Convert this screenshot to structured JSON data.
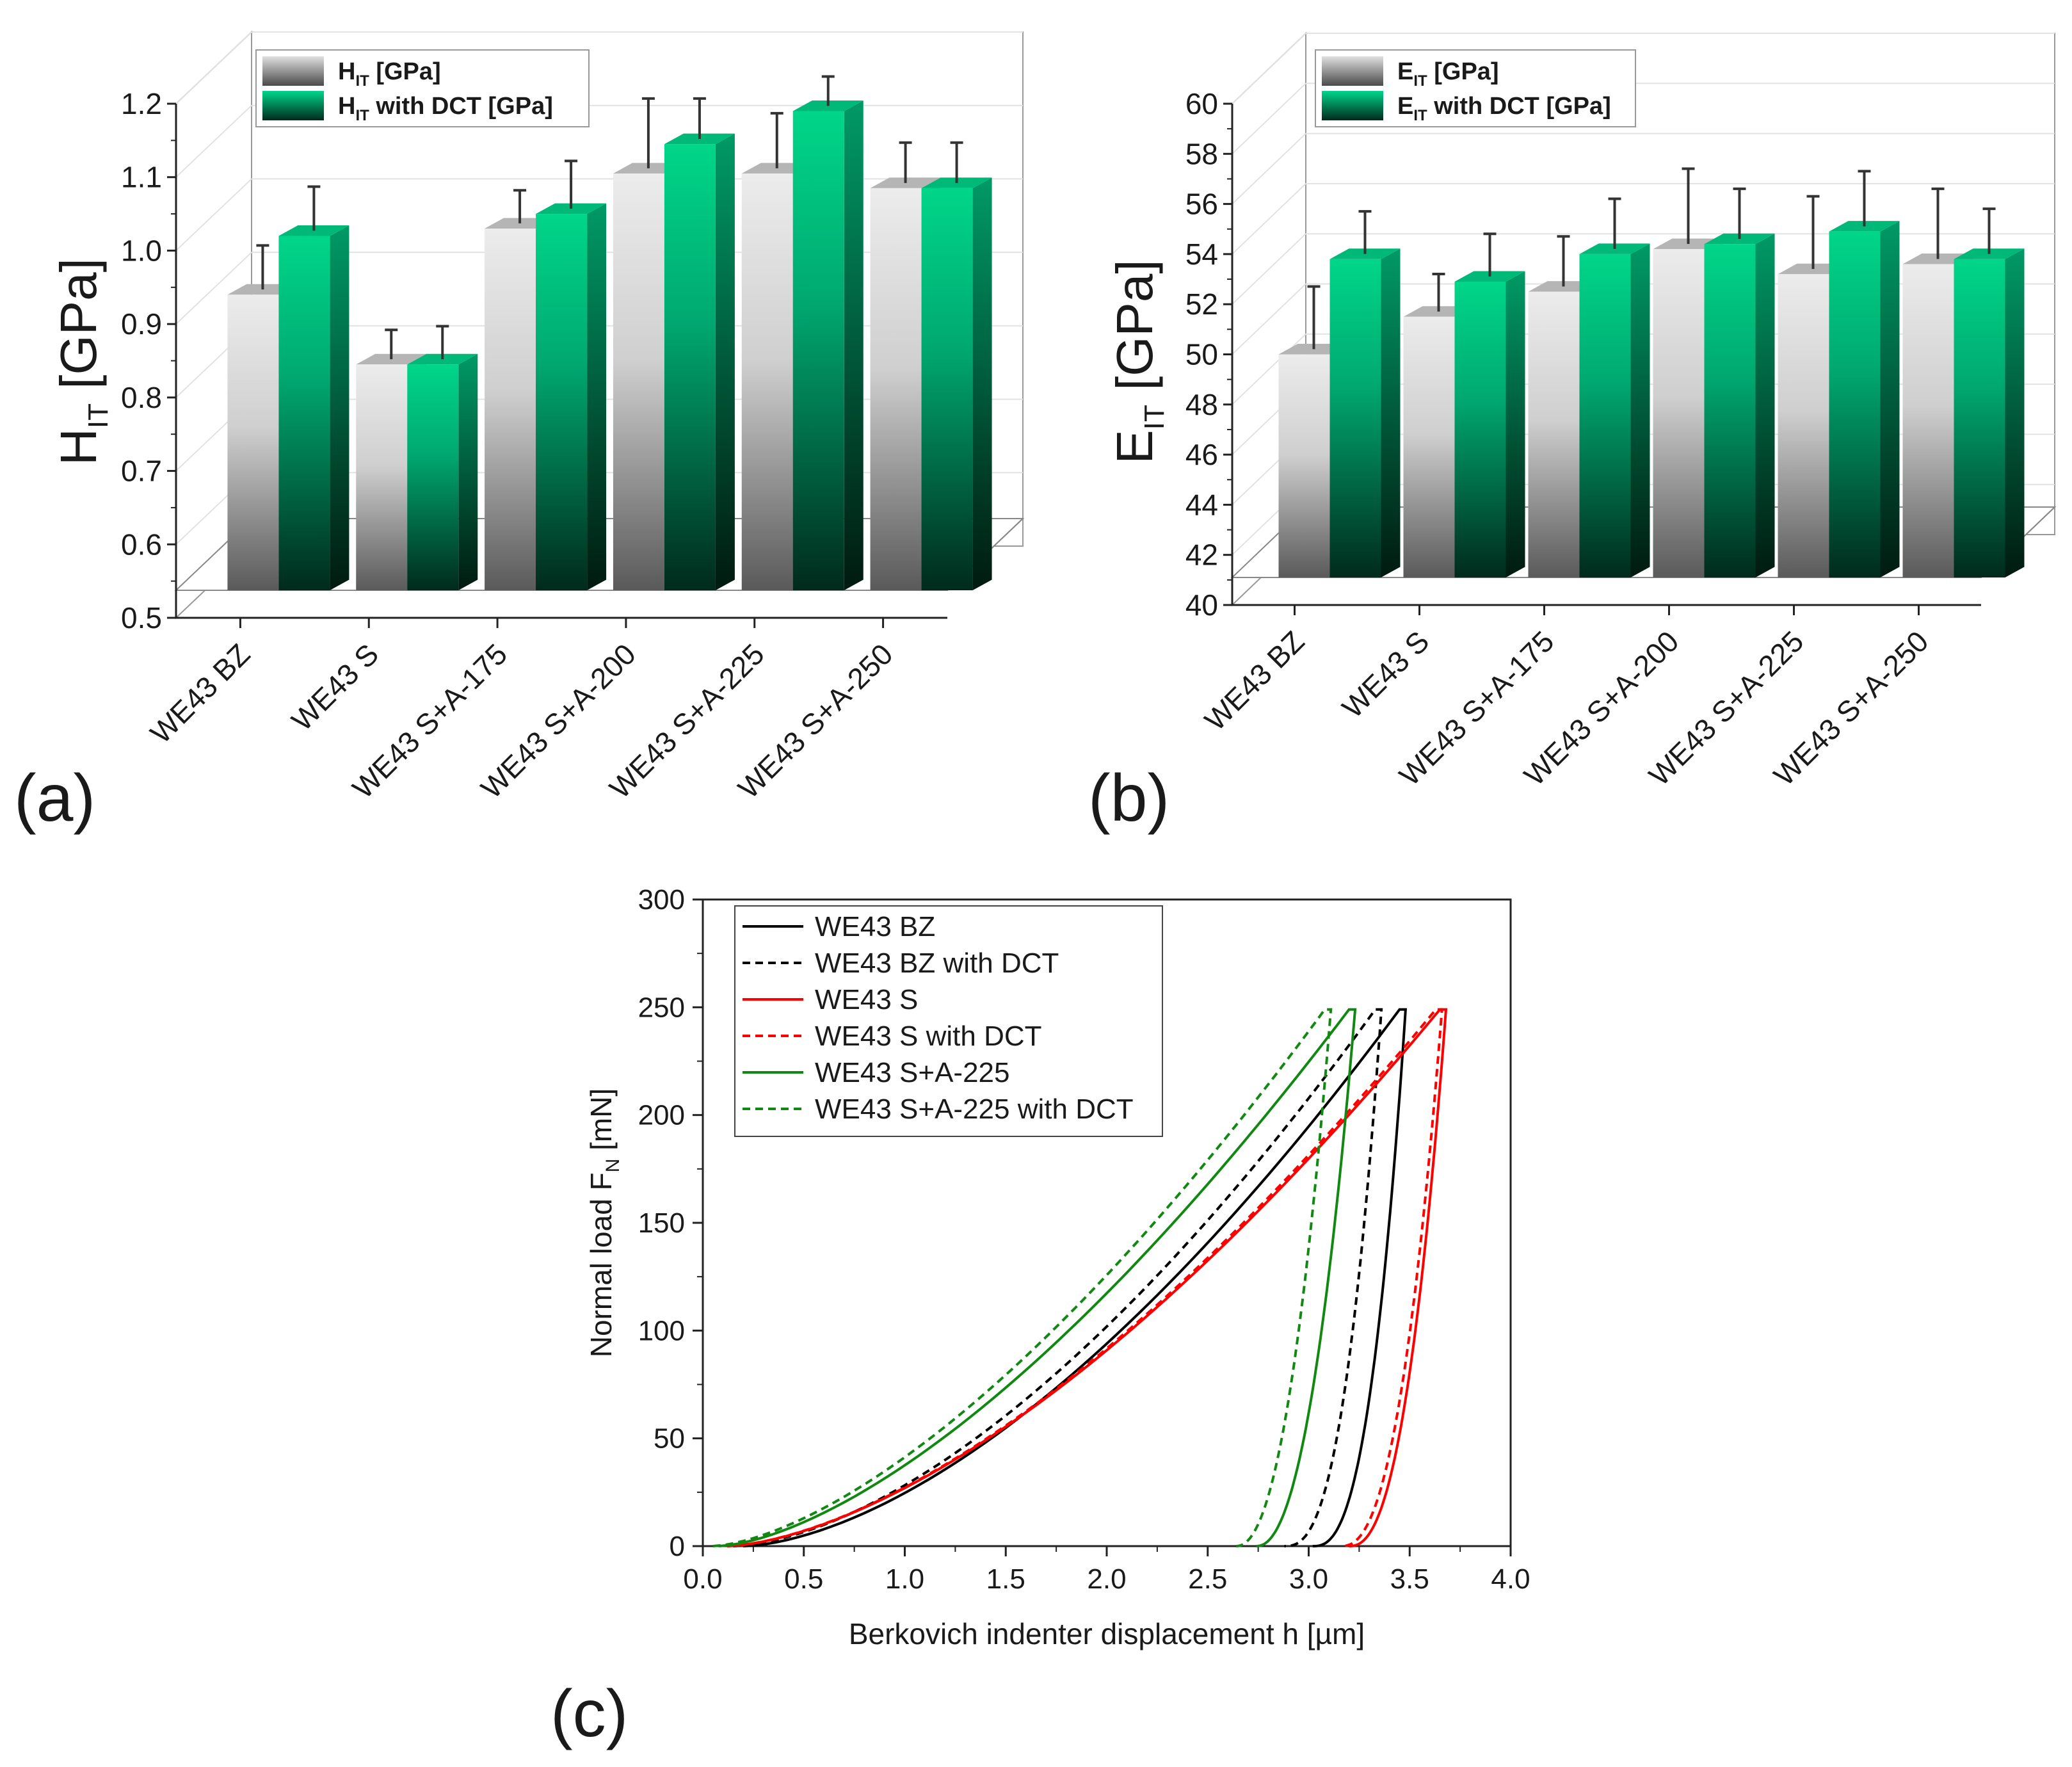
{
  "panels": {
    "a": {
      "letter": "(a)"
    },
    "b": {
      "letter": "(b)"
    },
    "c": {
      "letter": "(c)"
    }
  },
  "colors": {
    "grey_light": "#e6e6e6",
    "grey_dark": "#5a5a5a",
    "green_light": "#00d68a",
    "green_dark": "#002a1c",
    "black": "#000000",
    "red": "#ff0000",
    "green_line": "#118811"
  },
  "chart_data": [
    {
      "type": "bar",
      "id": "a",
      "title": "",
      "ylabel_main": "H",
      "ylabel_sub": "IT",
      "ylabel_unit": " [GPa]",
      "categories": [
        "WE43 BZ",
        "WE43 S",
        "WE43 S+A-175",
        "WE43 S+A-200",
        "WE43 S+A-225",
        "WE43 S+A-250"
      ],
      "series": [
        {
          "name_main": "H",
          "name_sub": "IT",
          "name_rest": " [GPa]",
          "values": [
            0.94,
            0.845,
            1.03,
            1.105,
            1.105,
            1.085
          ],
          "errors": [
            0.06,
            0.04,
            0.045,
            0.095,
            0.075,
            0.055
          ]
        },
        {
          "name_main": "H",
          "name_sub": "IT",
          "name_rest": " with DCT [GPa]",
          "values": [
            1.02,
            0.845,
            1.05,
            1.145,
            1.19,
            1.085
          ],
          "errors": [
            0.06,
            0.045,
            0.065,
            0.055,
            0.04,
            0.055
          ]
        }
      ],
      "ylim": [
        0.5,
        1.2
      ],
      "yticks": [
        0.5,
        0.6,
        0.7,
        0.8,
        0.9,
        1.0,
        1.1,
        1.2
      ],
      "ytick_labels": [
        "0.5",
        "0.6",
        "0.7",
        "0.8",
        "0.9",
        "1.0",
        "1.1",
        "1.2"
      ],
      "grid": true,
      "legend": "top-left"
    },
    {
      "type": "bar",
      "id": "b",
      "title": "",
      "ylabel_main": "E",
      "ylabel_sub": "IT",
      "ylabel_unit": " [GPa]",
      "categories": [
        "WE43 BZ",
        "WE43 S",
        "WE43 S+A-175",
        "WE43 S+A-200",
        "WE43 S+A-225",
        "WE43 S+A-250"
      ],
      "series": [
        {
          "name_main": "E",
          "name_sub": "IT",
          "name_rest": " [GPa]",
          "values": [
            50.0,
            51.5,
            52.5,
            54.2,
            53.2,
            53.6
          ],
          "errors": [
            2.5,
            1.5,
            2.0,
            3.0,
            2.9,
            2.8
          ]
        },
        {
          "name_main": "E",
          "name_sub": "IT",
          "name_rest": " with DCT [GPa]",
          "values": [
            53.8,
            52.9,
            54.0,
            54.4,
            54.9,
            53.8
          ],
          "errors": [
            1.7,
            1.7,
            2.0,
            2.0,
            2.2,
            1.8
          ]
        }
      ],
      "ylim": [
        40,
        60
      ],
      "yticks": [
        40,
        42,
        44,
        46,
        48,
        50,
        52,
        54,
        56,
        58,
        60
      ],
      "ytick_labels": [
        "40",
        "42",
        "44",
        "46",
        "48",
        "50",
        "52",
        "54",
        "56",
        "58",
        "60"
      ],
      "grid": true,
      "legend": "top-left"
    },
    {
      "type": "line",
      "id": "c",
      "title": "",
      "xlabel": "Berkovich indenter displacement h [µm]",
      "ylabel_main": "Normal load F",
      "ylabel_sub": "N",
      "ylabel_unit": " [mN]",
      "xlim": [
        0.0,
        4.0
      ],
      "ylim": [
        0,
        300
      ],
      "xticks": [
        0.0,
        0.5,
        1.0,
        1.5,
        2.0,
        2.5,
        3.0,
        3.5,
        4.0
      ],
      "xtick_labels": [
        "0.0",
        "0.5",
        "1.0",
        "1.5",
        "2.0",
        "2.5",
        "3.0",
        "3.5",
        "4.0"
      ],
      "yticks": [
        0,
        50,
        100,
        150,
        200,
        250,
        300
      ],
      "ytick_labels": [
        "0",
        "50",
        "100",
        "150",
        "200",
        "250",
        "300"
      ],
      "legend": "top-left",
      "series": [
        {
          "name": "WE43 BZ",
          "color": "#000000",
          "dash": false,
          "h0": 0.2,
          "hmax": 3.45,
          "hf": 3.02,
          "fmax": 249,
          "load_exp": 1.65,
          "unload_exp": 2.6
        },
        {
          "name": "WE43 BZ with DCT",
          "color": "#000000",
          "dash": true,
          "h0": 0.15,
          "hmax": 3.33,
          "hf": 2.88,
          "fmax": 249,
          "load_exp": 1.65,
          "unload_exp": 2.6
        },
        {
          "name": "WE43 S",
          "color": "#ff0000",
          "dash": false,
          "h0": 0.12,
          "hmax": 3.65,
          "hf": 3.2,
          "fmax": 249,
          "load_exp": 1.6,
          "unload_exp": 2.4
        },
        {
          "name": "WE43 S with DCT",
          "color": "#ff0000",
          "dash": true,
          "h0": 0.12,
          "hmax": 3.63,
          "hf": 3.16,
          "fmax": 249,
          "load_exp": 1.6,
          "unload_exp": 2.4
        },
        {
          "name": "WE43 S+A-225",
          "color": "#118811",
          "dash": false,
          "h0": 0.08,
          "hmax": 3.2,
          "hf": 2.74,
          "fmax": 249,
          "load_exp": 1.55,
          "unload_exp": 2.2
        },
        {
          "name": "WE43 S+A-225 with DCT",
          "color": "#118811",
          "dash": true,
          "h0": 0.05,
          "hmax": 3.08,
          "hf": 2.64,
          "fmax": 249,
          "load_exp": 1.55,
          "unload_exp": 2.2
        }
      ]
    }
  ]
}
